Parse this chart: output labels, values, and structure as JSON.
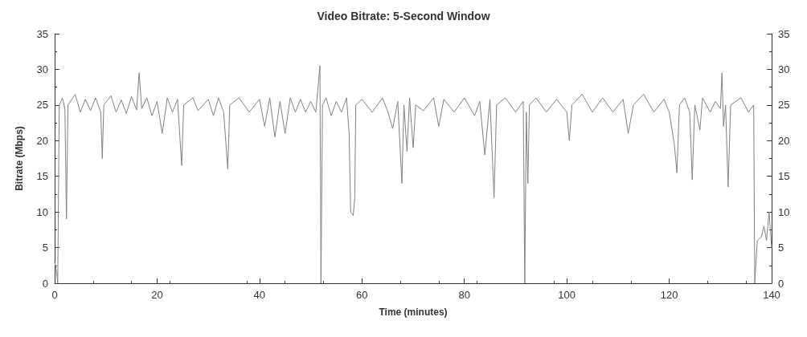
{
  "chart_data": {
    "type": "line",
    "title": "Video Bitrate: 5-Second Window",
    "xlabel": "Time (minutes)",
    "ylabel": "Bitrate (Mbps)",
    "xlim": [
      0,
      140
    ],
    "xticks": [
      0,
      20,
      40,
      60,
      80,
      100,
      120,
      140
    ],
    "ylim": [
      0,
      35
    ],
    "yticks": [
      0,
      5,
      10,
      15,
      20,
      25,
      30,
      35
    ],
    "y2lim": [
      0,
      35
    ],
    "y2ticks": [
      0,
      5,
      10,
      15,
      20,
      25,
      30,
      35
    ],
    "marker": "none",
    "line_style": "solid",
    "series": [
      {
        "color": "#808080",
        "x": [
          0,
          0.3,
          0.6,
          0.9,
          1.5,
          2.0,
          2.3,
          2.6,
          4,
          5,
          6,
          7,
          8,
          9,
          9.3,
          9.6,
          11,
          12,
          13,
          14,
          15,
          16,
          16.5,
          17,
          18,
          19,
          20,
          21,
          22,
          23,
          24,
          24.8,
          25.2,
          27,
          28,
          30,
          31,
          32,
          33,
          33.8,
          34.2,
          36,
          38,
          40,
          41,
          42,
          43,
          44,
          45,
          46,
          47,
          48,
          49,
          50,
          51,
          51.8,
          52,
          52.3,
          53,
          54,
          55,
          56,
          57,
          57.5,
          57.8,
          58.3,
          58.6,
          58.8,
          60,
          62,
          64,
          65,
          66,
          67,
          67.8,
          68.2,
          68.8,
          69.3,
          70,
          70.5,
          72,
          74,
          75,
          76,
          78,
          80,
          82,
          83,
          84,
          85,
          85.8,
          86.3,
          88,
          90,
          91.5,
          91.8,
          92.1,
          92.4,
          92.7,
          94,
          96,
          98,
          100,
          100.5,
          101,
          103,
          105,
          107,
          109,
          111,
          112,
          113,
          115,
          117,
          119,
          120,
          121,
          121.5,
          122,
          123,
          124,
          124.5,
          125,
          126,
          126.5,
          128,
          129,
          130,
          130.3,
          130.6,
          131,
          131.5,
          132,
          134,
          135.5,
          136.5,
          136.7,
          137.2,
          138,
          138.5,
          139,
          139.5,
          140
        ],
        "values": [
          3,
          2,
          0,
          25,
          26,
          24.5,
          9,
          25,
          26.5,
          24,
          25.8,
          24.2,
          26,
          24,
          17.5,
          25,
          26.3,
          24,
          25.7,
          23.8,
          26.2,
          24.3,
          29.5,
          24.5,
          26,
          23.5,
          25.5,
          21,
          26,
          24,
          25.8,
          16.5,
          25,
          26,
          24.2,
          25.8,
          23.5,
          26,
          24,
          16,
          25,
          26,
          24,
          25.8,
          22,
          26,
          20.5,
          25.5,
          21,
          26,
          24,
          25.8,
          24,
          25.5,
          24,
          30.5,
          0,
          25,
          26,
          23.5,
          25.5,
          24,
          26,
          21,
          10,
          9.5,
          12,
          25,
          25.8,
          24,
          26,
          24.2,
          21.7,
          25.5,
          14,
          25,
          18.5,
          26,
          19,
          25,
          24.2,
          26,
          22,
          25.8,
          24,
          26,
          23.5,
          25.5,
          18,
          25.8,
          12,
          25,
          26,
          24,
          25.5,
          0,
          24,
          14,
          25,
          26,
          24,
          25.8,
          24,
          20,
          25,
          26.5,
          24,
          26,
          24,
          25.8,
          21,
          25,
          26.5,
          24,
          25.8,
          24,
          19.5,
          15.5,
          25,
          26,
          24,
          14.5,
          25,
          21.5,
          26,
          24,
          25.5,
          24.5,
          29.5,
          22,
          25,
          13.5,
          25,
          26,
          24,
          25,
          0,
          6,
          6.5,
          8,
          6,
          10,
          5
        ]
      }
    ]
  }
}
